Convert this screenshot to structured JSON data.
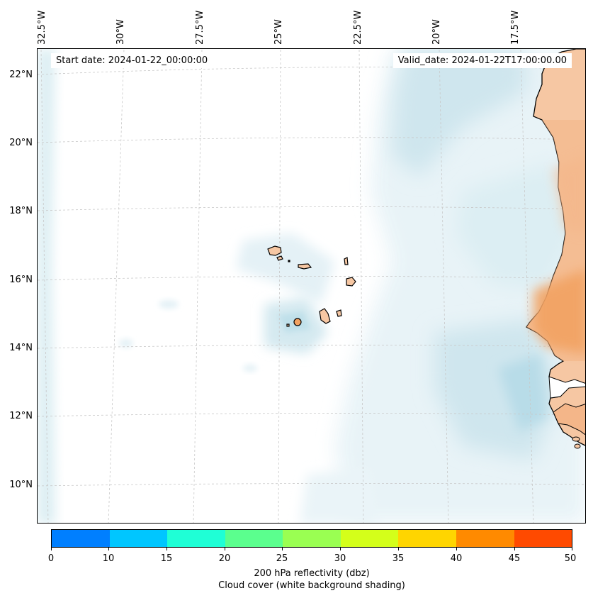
{
  "header": {
    "start_date": "Start date: 2024-01-22_00:00:00",
    "valid_date": "Valid_date: 2024-01-22T17:00:00.00"
  },
  "map": {
    "latitude_labels": [
      "22°N",
      "20°N",
      "18°N",
      "16°N",
      "14°N",
      "12°N",
      "10°N"
    ],
    "longitude_labels": [
      "32.5°W",
      "30°W",
      "27.5°W",
      "25°W",
      "22.5°W",
      "20°W",
      "17.5°W"
    ],
    "islands_group": "Cape Verde",
    "coastline": "West Africa (Mauritania, Senegal, The Gambia, Guinea-Bissau)",
    "colors": {
      "land": "#f6c7a3",
      "land_hot": "#f2a262",
      "cloud_light": "#e7f3f7",
      "cloud_medium": "#cfe6ee",
      "gridline": "#c8c8c8"
    }
  },
  "colorbar": {
    "ticks": [
      "0",
      "10",
      "15",
      "20",
      "25",
      "30",
      "35",
      "40",
      "45",
      "50"
    ],
    "colors": [
      "#007fff",
      "#00c6ff",
      "#1fffd6",
      "#5bff8e",
      "#9aff52",
      "#d4ff1a",
      "#ffd500",
      "#ff8a00",
      "#ff4a00"
    ],
    "label_line1": "200 hPa reflectivity (dbz)",
    "label_line2": "Cloud cover (white background shading)"
  }
}
